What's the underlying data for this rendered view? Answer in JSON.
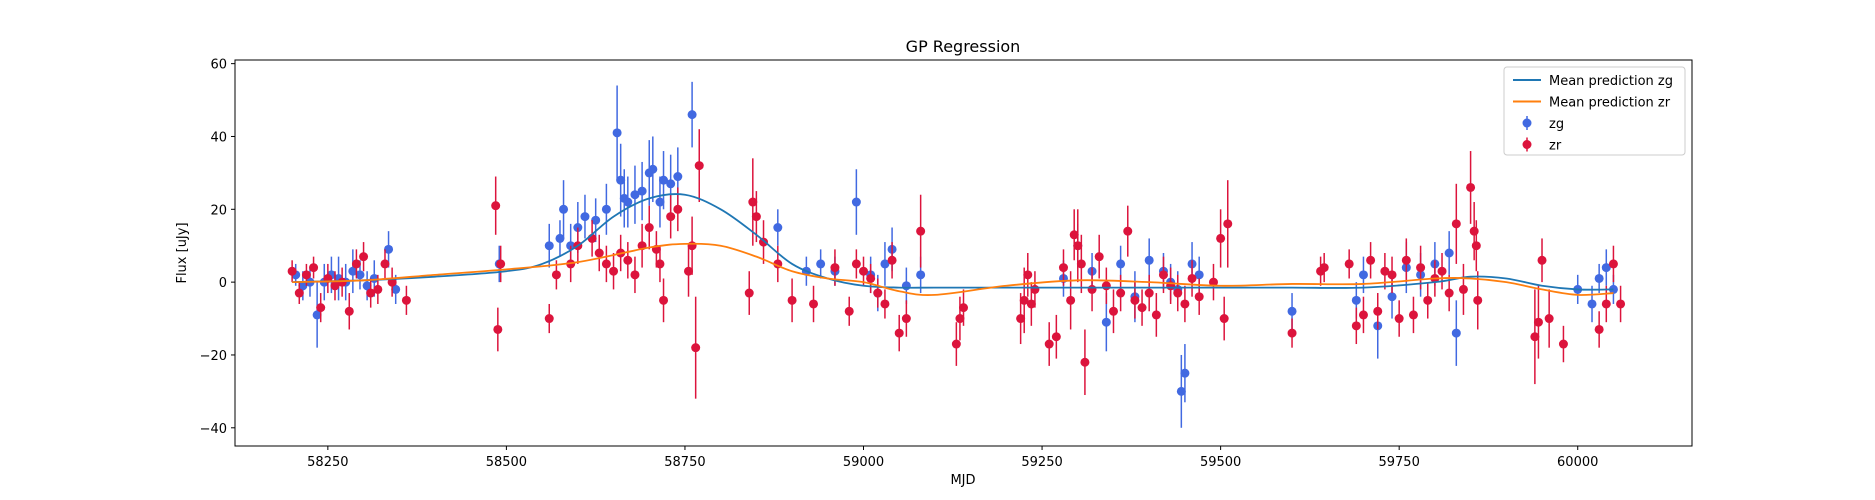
{
  "chart_data": {
    "type": "scatter",
    "title": "GP Regression",
    "xlabel": "MJD",
    "ylabel": "Flux [uJy]",
    "xlim": [
      58120,
      60160
    ],
    "ylim": [
      -45,
      61
    ],
    "xticks": [
      58250,
      58500,
      58750,
      59000,
      59250,
      59500,
      59750,
      60000
    ],
    "yticks": [
      -40,
      -20,
      0,
      20,
      40,
      60
    ],
    "grid": false,
    "legend_position": "top-right",
    "legend": [
      "Mean prediction zg",
      "Mean prediction zr",
      "zg",
      "zr"
    ],
    "colors": {
      "zg_line": "#1f77b4",
      "zr_line": "#ff7f0e",
      "zg_points": "#4169e1",
      "zr_points": "#dc143c"
    },
    "series": [
      {
        "name": "Mean prediction zg",
        "kind": "line",
        "x": [
          58200,
          58300,
          58400,
          58500,
          58550,
          58600,
          58650,
          58700,
          58750,
          58800,
          58850,
          58900,
          58950,
          59000,
          59050,
          59100,
          59200,
          59300,
          59400,
          59500,
          59600,
          59700,
          59800,
          59850,
          59900,
          59950,
          60000,
          60050
        ],
        "y": [
          0,
          0.5,
          1.5,
          3,
          5,
          10,
          18,
          23,
          24,
          20,
          13,
          5,
          1,
          -1,
          -1.5,
          -1.5,
          -1.5,
          -1.5,
          -1.5,
          -1.5,
          -1.5,
          -1.5,
          0,
          1.5,
          1,
          -1,
          -2,
          -2
        ]
      },
      {
        "name": "Mean prediction zr",
        "kind": "line",
        "x": [
          58200,
          58300,
          58400,
          58500,
          58600,
          58700,
          58750,
          58800,
          58850,
          58900,
          58950,
          59000,
          59050,
          59100,
          59200,
          59300,
          59400,
          59500,
          59600,
          59700,
          59800,
          59850,
          59900,
          59950,
          60000,
          60050
        ],
        "y": [
          0,
          0.5,
          2,
          3.5,
          5.5,
          9.5,
          10.5,
          10,
          7,
          3,
          1,
          0,
          -2.5,
          -3.5,
          -1,
          0.5,
          0,
          -1,
          -0.5,
          -0.5,
          1,
          1,
          0,
          -2,
          -3.5,
          -3
        ]
      },
      {
        "name": "zg",
        "kind": "errorbar",
        "x": [
          58205,
          58215,
          58225,
          58235,
          58245,
          58255,
          58265,
          58275,
          58285,
          58295,
          58305,
          58315,
          58335,
          58345,
          58490,
          58560,
          58575,
          58580,
          58590,
          58600,
          58610,
          58625,
          58640,
          58655,
          58660,
          58665,
          58670,
          58680,
          58690,
          58700,
          58705,
          58715,
          58720,
          58730,
          58740,
          58760,
          58880,
          58920,
          58940,
          58960,
          58990,
          59010,
          59020,
          59030,
          59040,
          59060,
          59080,
          59280,
          59300,
          59320,
          59340,
          59360,
          59380,
          59400,
          59420,
          59430,
          59440,
          59445,
          59450,
          59460,
          59470,
          59600,
          59690,
          59700,
          59720,
          59740,
          59760,
          59780,
          59800,
          59820,
          59830,
          60000,
          60020,
          60030,
          60040,
          60050
        ],
        "y": [
          2,
          -1,
          0,
          -9,
          0,
          2,
          1,
          0,
          3,
          2,
          -1,
          1,
          9,
          -2,
          5,
          10,
          12,
          20,
          10,
          15,
          18,
          17,
          20,
          41,
          28,
          23,
          22,
          24,
          25,
          30,
          31,
          22,
          28,
          27,
          29,
          46,
          15,
          3,
          5,
          3,
          22,
          2,
          -3,
          5,
          9,
          -1,
          2,
          1,
          10,
          3,
          -11,
          5,
          -4,
          6,
          3,
          0,
          -2,
          -30,
          -25,
          5,
          2,
          -8,
          -5,
          2,
          -12,
          -4,
          4,
          2,
          5,
          8,
          -14,
          -2,
          -6,
          1,
          4,
          -2
        ],
        "err": [
          3,
          4,
          4,
          9,
          5,
          5,
          6,
          5,
          6,
          4,
          4,
          5,
          5,
          4,
          5,
          6,
          5,
          8,
          6,
          7,
          6,
          6,
          7,
          13,
          10,
          8,
          7,
          8,
          8,
          9,
          9,
          7,
          8,
          8,
          8,
          9,
          5,
          4,
          4,
          4,
          9,
          5,
          5,
          6,
          6,
          5,
          5,
          5,
          6,
          5,
          8,
          5,
          7,
          6,
          5,
          5,
          5,
          10,
          8,
          6,
          5,
          5,
          5,
          5,
          9,
          6,
          7,
          6,
          6,
          6,
          9,
          4,
          5,
          4,
          5,
          4
        ]
      },
      {
        "name": "zr",
        "kind": "errorbar",
        "x": [
          58200,
          58210,
          58220,
          58230,
          58240,
          58250,
          58260,
          58270,
          58280,
          58290,
          58300,
          58310,
          58320,
          58330,
          58340,
          58360,
          58485,
          58488,
          58492,
          58560,
          58570,
          58590,
          58600,
          58620,
          58630,
          58640,
          58650,
          58660,
          58670,
          58680,
          58690,
          58700,
          58710,
          58715,
          58720,
          58730,
          58740,
          58755,
          58760,
          58765,
          58770,
          58840,
          58845,
          58850,
          58860,
          58880,
          58900,
          58930,
          58960,
          58980,
          58990,
          59000,
          59010,
          59020,
          59030,
          59040,
          59050,
          59060,
          59080,
          59130,
          59135,
          59140,
          59220,
          59225,
          59230,
          59235,
          59240,
          59260,
          59270,
          59280,
          59290,
          59295,
          59300,
          59305,
          59310,
          59320,
          59330,
          59340,
          59350,
          59360,
          59370,
          59380,
          59390,
          59400,
          59410,
          59420,
          59430,
          59440,
          59450,
          59460,
          59470,
          59490,
          59500,
          59505,
          59510,
          59600,
          59640,
          59645,
          59680,
          59690,
          59700,
          59710,
          59720,
          59730,
          59740,
          59750,
          59760,
          59770,
          59780,
          59790,
          59800,
          59810,
          59820,
          59830,
          59840,
          59850,
          59855,
          59858,
          59860,
          59940,
          59945,
          59950,
          59960,
          59980,
          60030,
          60040,
          60050,
          60060
        ],
        "y": [
          3,
          -3,
          2,
          4,
          -7,
          1,
          -1,
          0,
          -8,
          5,
          7,
          -3,
          -2,
          5,
          0,
          -5,
          21,
          -13,
          5,
          -10,
          2,
          5,
          10,
          12,
          8,
          5,
          3,
          8,
          6,
          2,
          10,
          15,
          9,
          5,
          -5,
          18,
          20,
          3,
          10,
          -18,
          32,
          -3,
          22,
          18,
          11,
          5,
          -5,
          -6,
          4,
          -8,
          5,
          3,
          1,
          -3,
          -6,
          6,
          -14,
          -10,
          14,
          -17,
          -10,
          -7,
          -10,
          -5,
          2,
          -6,
          -2,
          -17,
          -15,
          4,
          -5,
          13,
          10,
          5,
          -22,
          -2,
          7,
          -1,
          -8,
          -3,
          14,
          -5,
          -7,
          -3,
          -9,
          2,
          -1,
          -3,
          -6,
          1,
          -4,
          0,
          12,
          -10,
          16,
          -14,
          3,
          4,
          5,
          -12,
          -9,
          6,
          -8,
          3,
          2,
          -10,
          6,
          -9,
          4,
          -5,
          1,
          3,
          -3,
          16,
          -2,
          26,
          14,
          10,
          -5,
          -15,
          -11,
          6,
          -10,
          -17,
          -13,
          -6,
          5,
          -6
        ],
        "err": [
          3,
          3,
          3,
          3,
          4,
          4,
          4,
          4,
          5,
          4,
          4,
          4,
          4,
          4,
          4,
          4,
          8,
          6,
          5,
          4,
          4,
          5,
          5,
          5,
          5,
          5,
          5,
          5,
          5,
          5,
          6,
          6,
          5,
          5,
          6,
          6,
          6,
          7,
          8,
          14,
          10,
          6,
          12,
          7,
          6,
          5,
          6,
          5,
          5,
          4,
          4,
          4,
          4,
          4,
          4,
          5,
          5,
          5,
          10,
          6,
          6,
          5,
          7,
          9,
          6,
          6,
          5,
          6,
          6,
          5,
          8,
          7,
          10,
          8,
          9,
          6,
          6,
          5,
          6,
          5,
          7,
          5,
          5,
          5,
          6,
          5,
          5,
          5,
          5,
          5,
          5,
          5,
          8,
          6,
          12,
          4,
          4,
          4,
          4,
          5,
          5,
          5,
          5,
          5,
          5,
          5,
          6,
          5,
          6,
          5,
          5,
          5,
          5,
          11,
          7,
          10,
          8,
          7,
          8,
          13,
          10,
          6,
          8,
          5,
          5,
          5,
          5,
          5
        ]
      }
    ]
  }
}
